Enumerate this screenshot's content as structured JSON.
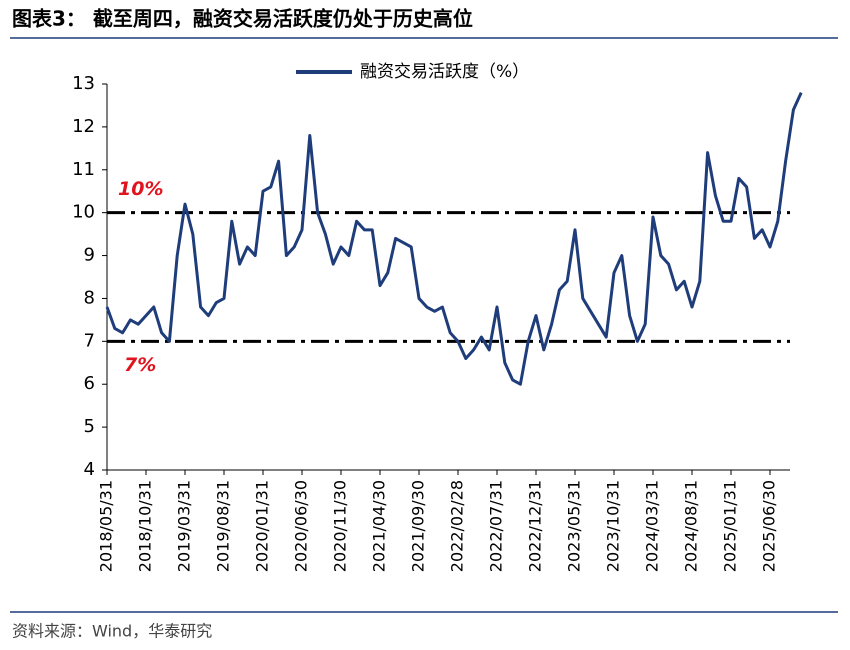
{
  "chart_data": {
    "type": "line",
    "title": "图表3：  截至周四，融资交易活跃度仍处于历史高位",
    "source": "资料来源：Wind，华泰研究",
    "categories": [
      "2018/05/31",
      null,
      null,
      null,
      null,
      "2018/10/31",
      null,
      null,
      null,
      null,
      "2019/03/31",
      null,
      null,
      null,
      null,
      "2019/08/31",
      null,
      null,
      null,
      null,
      "2020/01/31",
      null,
      null,
      null,
      null,
      "2020/06/30",
      null,
      null,
      null,
      null,
      "2020/11/30",
      null,
      null,
      null,
      null,
      "2021/04/30",
      null,
      null,
      null,
      null,
      "2021/09/30",
      null,
      null,
      null,
      null,
      "2022/02/28",
      null,
      null,
      null,
      null,
      "2022/07/31",
      null,
      null,
      null,
      null,
      "2022/12/31",
      null,
      null,
      null,
      null,
      "2023/05/31",
      null,
      null,
      null,
      null,
      "2023/10/31",
      null,
      null,
      null,
      null,
      "2024/03/31",
      null,
      null,
      null,
      null,
      "2024/08/31",
      null,
      null,
      null,
      null,
      "2025/01/31",
      null,
      null,
      null,
      null,
      "2025/06/30",
      null,
      null,
      null,
      null
    ],
    "series": [
      {
        "name": "融资交易活跃度（%）",
        "color": "#1f3d7a",
        "values": [
          7.8,
          7.3,
          7.2,
          7.5,
          7.4,
          7.6,
          7.8,
          7.2,
          7.0,
          9.0,
          10.2,
          9.5,
          7.8,
          7.6,
          7.9,
          8.0,
          9.8,
          8.8,
          9.2,
          9.0,
          10.5,
          10.6,
          11.2,
          9.0,
          9.2,
          9.6,
          11.8,
          10.0,
          9.5,
          8.8,
          9.2,
          9.0,
          9.8,
          9.6,
          9.6,
          8.3,
          8.6,
          9.4,
          9.3,
          9.2,
          8.0,
          7.8,
          7.7,
          7.8,
          7.2,
          7.0,
          6.6,
          6.8,
          7.1,
          6.8,
          7.8,
          6.5,
          6.1,
          6.0,
          7.0,
          7.6,
          6.8,
          7.4,
          8.2,
          8.4,
          9.6,
          8.0,
          7.7,
          7.4,
          7.1,
          8.6,
          9.0,
          7.6,
          7.0,
          7.4,
          9.9,
          9.0,
          8.8,
          8.2,
          8.4,
          7.8,
          8.4,
          11.4,
          10.4,
          9.8,
          9.8,
          10.8,
          10.6,
          9.4,
          9.6,
          9.2,
          9.8,
          11.2,
          12.4,
          12.8
        ]
      }
    ],
    "hlines": [
      {
        "value": 10,
        "label": "10%"
      },
      {
        "value": 7,
        "label": "7%"
      }
    ],
    "ylim": [
      4,
      13
    ],
    "yticks": [
      4,
      5,
      6,
      7,
      8,
      9,
      10,
      11,
      12,
      13
    ],
    "legend": "top"
  }
}
